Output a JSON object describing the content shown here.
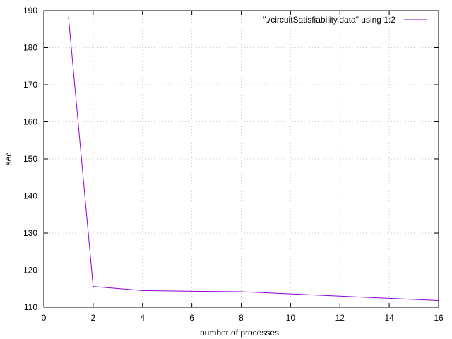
{
  "chart_data": {
    "type": "line",
    "title": "",
    "xlabel": "number of processes",
    "ylabel": "sec",
    "xlim": [
      0,
      16
    ],
    "ylim": [
      110,
      190
    ],
    "xticks": [
      0,
      2,
      4,
      6,
      8,
      10,
      12,
      14,
      16
    ],
    "yticks": [
      110,
      120,
      130,
      140,
      150,
      160,
      170,
      180,
      190
    ],
    "grid": true,
    "legend_position": "top-right",
    "series": [
      {
        "name": "\"./circuitSatisfiability.data\" using 1:2",
        "color": "#9400d3",
        "x": [
          1,
          2,
          4,
          6,
          8,
          10,
          12,
          14,
          16
        ],
        "y": [
          188.3,
          115.6,
          114.5,
          114.3,
          114.2,
          113.6,
          113.0,
          112.4,
          111.8
        ]
      }
    ]
  }
}
